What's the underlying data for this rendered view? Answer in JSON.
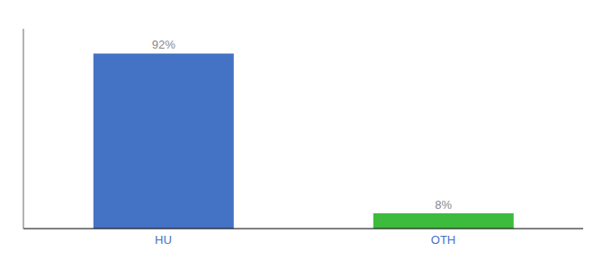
{
  "chart_data": {
    "type": "bar",
    "categories": [
      "HU",
      "OTH"
    ],
    "values": [
      92,
      8
    ],
    "value_labels": [
      "92%",
      "8%"
    ],
    "colors": [
      "#4472c4",
      "#3dbb3d"
    ],
    "ylim": [
      0,
      105
    ],
    "data_labels": true,
    "tick_labels": "x",
    "grid": false
  }
}
